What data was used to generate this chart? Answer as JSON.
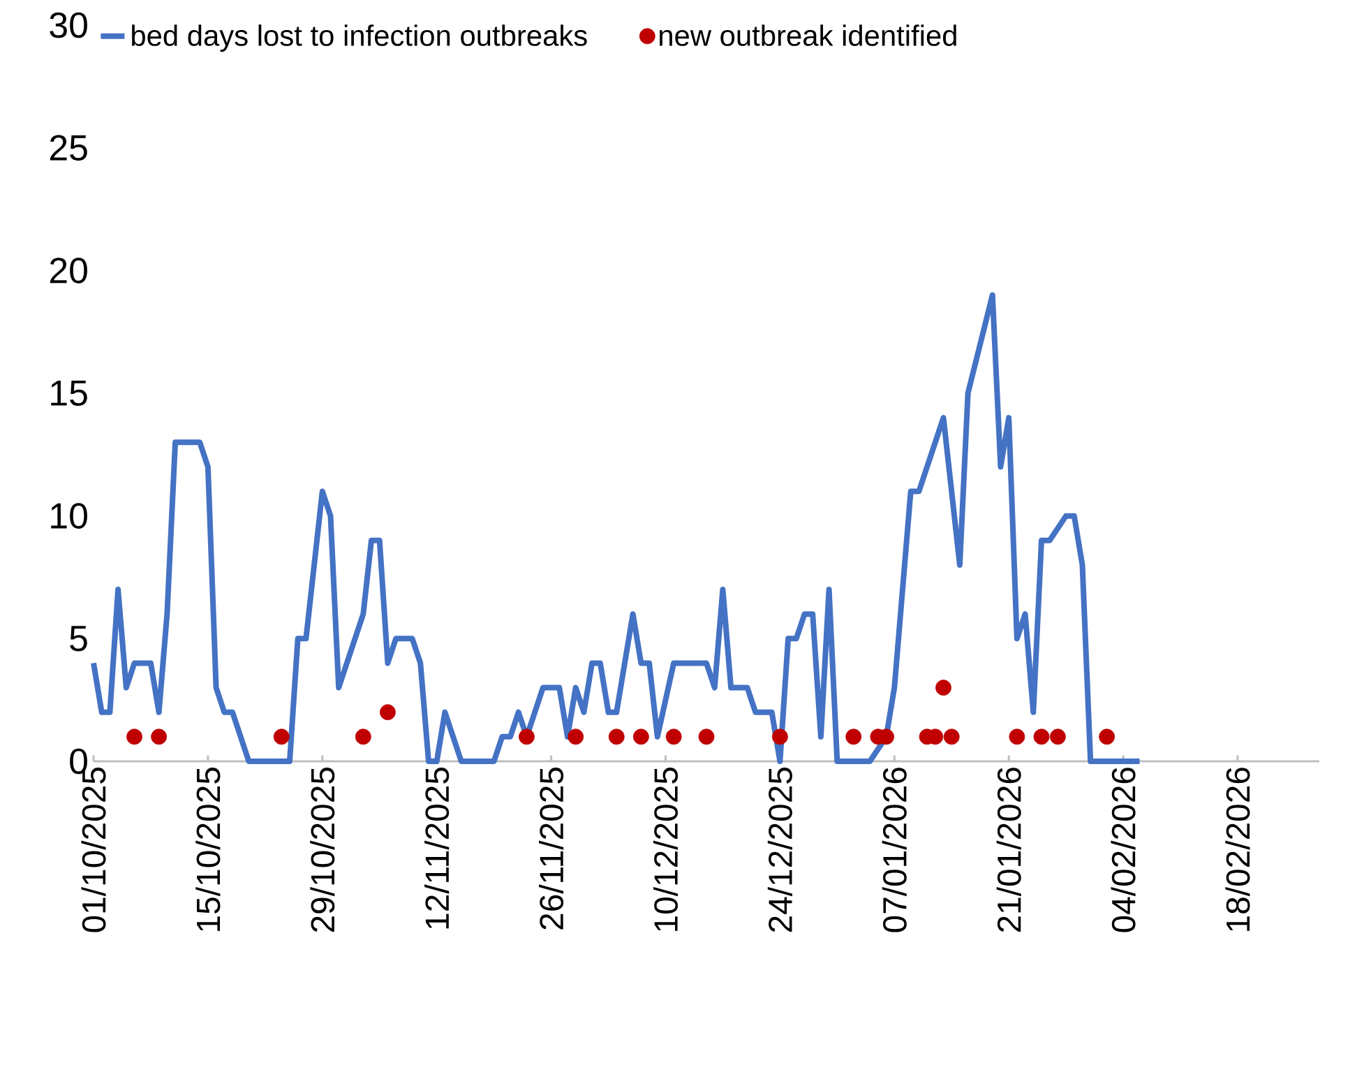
{
  "chart_data": {
    "type": "line",
    "legend": "top",
    "xlim": [
      "2025-10-01",
      "2026-02-28"
    ],
    "ylim": [
      0,
      30
    ],
    "yticks": [
      0,
      5,
      10,
      15,
      20,
      25,
      30
    ],
    "xticks": [
      {
        "value": "2025-10-01",
        "label": "01/10/2025"
      },
      {
        "value": "2025-10-15",
        "label": "15/10/2025"
      },
      {
        "value": "2025-10-29",
        "label": "29/10/2025"
      },
      {
        "value": "2025-11-12",
        "label": "12/11/2025"
      },
      {
        "value": "2025-11-26",
        "label": "26/11/2025"
      },
      {
        "value": "2025-12-10",
        "label": "10/12/2025"
      },
      {
        "value": "2025-12-24",
        "label": "24/12/2025"
      },
      {
        "value": "2026-01-07",
        "label": "07/01/2026"
      },
      {
        "value": "2026-01-21",
        "label": "21/01/2026"
      },
      {
        "value": "2026-02-04",
        "label": "04/02/2026"
      },
      {
        "value": "2026-02-18",
        "label": "18/02/2026"
      }
    ],
    "series": [
      {
        "name": "bed days lost to infection outbreaks",
        "color": "#4472c4",
        "marker": "none",
        "x": [
          "2025-10-01",
          "2025-10-02",
          "2025-10-03",
          "2025-10-04",
          "2025-10-05",
          "2025-10-06",
          "2025-10-08",
          "2025-10-09",
          "2025-10-10",
          "2025-10-11",
          "2025-10-14",
          "2025-10-15",
          "2025-10-16",
          "2025-10-17",
          "2025-10-18",
          "2025-10-20",
          "2025-10-25",
          "2025-10-26",
          "2025-10-27",
          "2025-10-29",
          "2025-10-30",
          "2025-10-31",
          "2025-11-03",
          "2025-11-04",
          "2025-11-05",
          "2025-11-06",
          "2025-11-07",
          "2025-11-09",
          "2025-11-10",
          "2025-11-11",
          "2025-11-12",
          "2025-11-13",
          "2025-11-15",
          "2025-11-19",
          "2025-11-20",
          "2025-11-21",
          "2025-11-22",
          "2025-11-23",
          "2025-11-25",
          "2025-11-27",
          "2025-11-28",
          "2025-11-29",
          "2025-11-30",
          "2025-12-01",
          "2025-12-02",
          "2025-12-03",
          "2025-12-04",
          "2025-12-06",
          "2025-12-07",
          "2025-12-08",
          "2025-12-09",
          "2025-12-11",
          "2025-12-15",
          "2025-12-16",
          "2025-12-17",
          "2025-12-18",
          "2025-12-20",
          "2025-12-21",
          "2025-12-23",
          "2025-12-24",
          "2025-12-25",
          "2025-12-26",
          "2025-12-27",
          "2025-12-28",
          "2025-12-29",
          "2025-12-30",
          "2025-12-31",
          "2026-01-04",
          "2026-01-06",
          "2026-01-07",
          "2026-01-09",
          "2026-01-10",
          "2026-01-13",
          "2026-01-15",
          "2026-01-16",
          "2026-01-19",
          "2026-01-20",
          "2026-01-21",
          "2026-01-22",
          "2026-01-23",
          "2026-01-24",
          "2026-01-25",
          "2026-01-26",
          "2026-01-28",
          "2026-01-29",
          "2026-01-30",
          "2026-01-31",
          "2026-02-06"
        ],
        "values": [
          4,
          2,
          2,
          7,
          3,
          4,
          4,
          2,
          6,
          13,
          13,
          12,
          3,
          2,
          2,
          0,
          0,
          5,
          5,
          11,
          10,
          3,
          6,
          9,
          9,
          4,
          5,
          5,
          4,
          0,
          0,
          2,
          0,
          0,
          1,
          1,
          2,
          1,
          3,
          3,
          1,
          3,
          2,
          4,
          4,
          2,
          2,
          6,
          4,
          4,
          1,
          4,
          4,
          3,
          7,
          3,
          3,
          2,
          2,
          0,
          5,
          5,
          6,
          6,
          1,
          7,
          0,
          0,
          1,
          3,
          11,
          11,
          14,
          8,
          15,
          19,
          12,
          14,
          5,
          6,
          2,
          9,
          9,
          10,
          10,
          8,
          0,
          0
        ]
      },
      {
        "name": "new outbreak identified",
        "type": "scatter",
        "color": "#c00000",
        "marker": "circle",
        "x": [
          "2025-10-06",
          "2025-10-09",
          "2025-10-24",
          "2025-11-03",
          "2025-11-06",
          "2025-11-23",
          "2025-11-29",
          "2025-12-04",
          "2025-12-07",
          "2025-12-11",
          "2025-12-15",
          "2025-12-24",
          "2026-01-02",
          "2026-01-05",
          "2026-01-06",
          "2026-01-11",
          "2026-01-12",
          "2026-01-13",
          "2026-01-14",
          "2026-01-22",
          "2026-01-25",
          "2026-01-27",
          "2026-02-02"
        ],
        "values": [
          1,
          1,
          1,
          1,
          2,
          1,
          1,
          1,
          1,
          1,
          1,
          1,
          1,
          1,
          1,
          1,
          1,
          3,
          1,
          1,
          1,
          1,
          1
        ]
      }
    ]
  }
}
